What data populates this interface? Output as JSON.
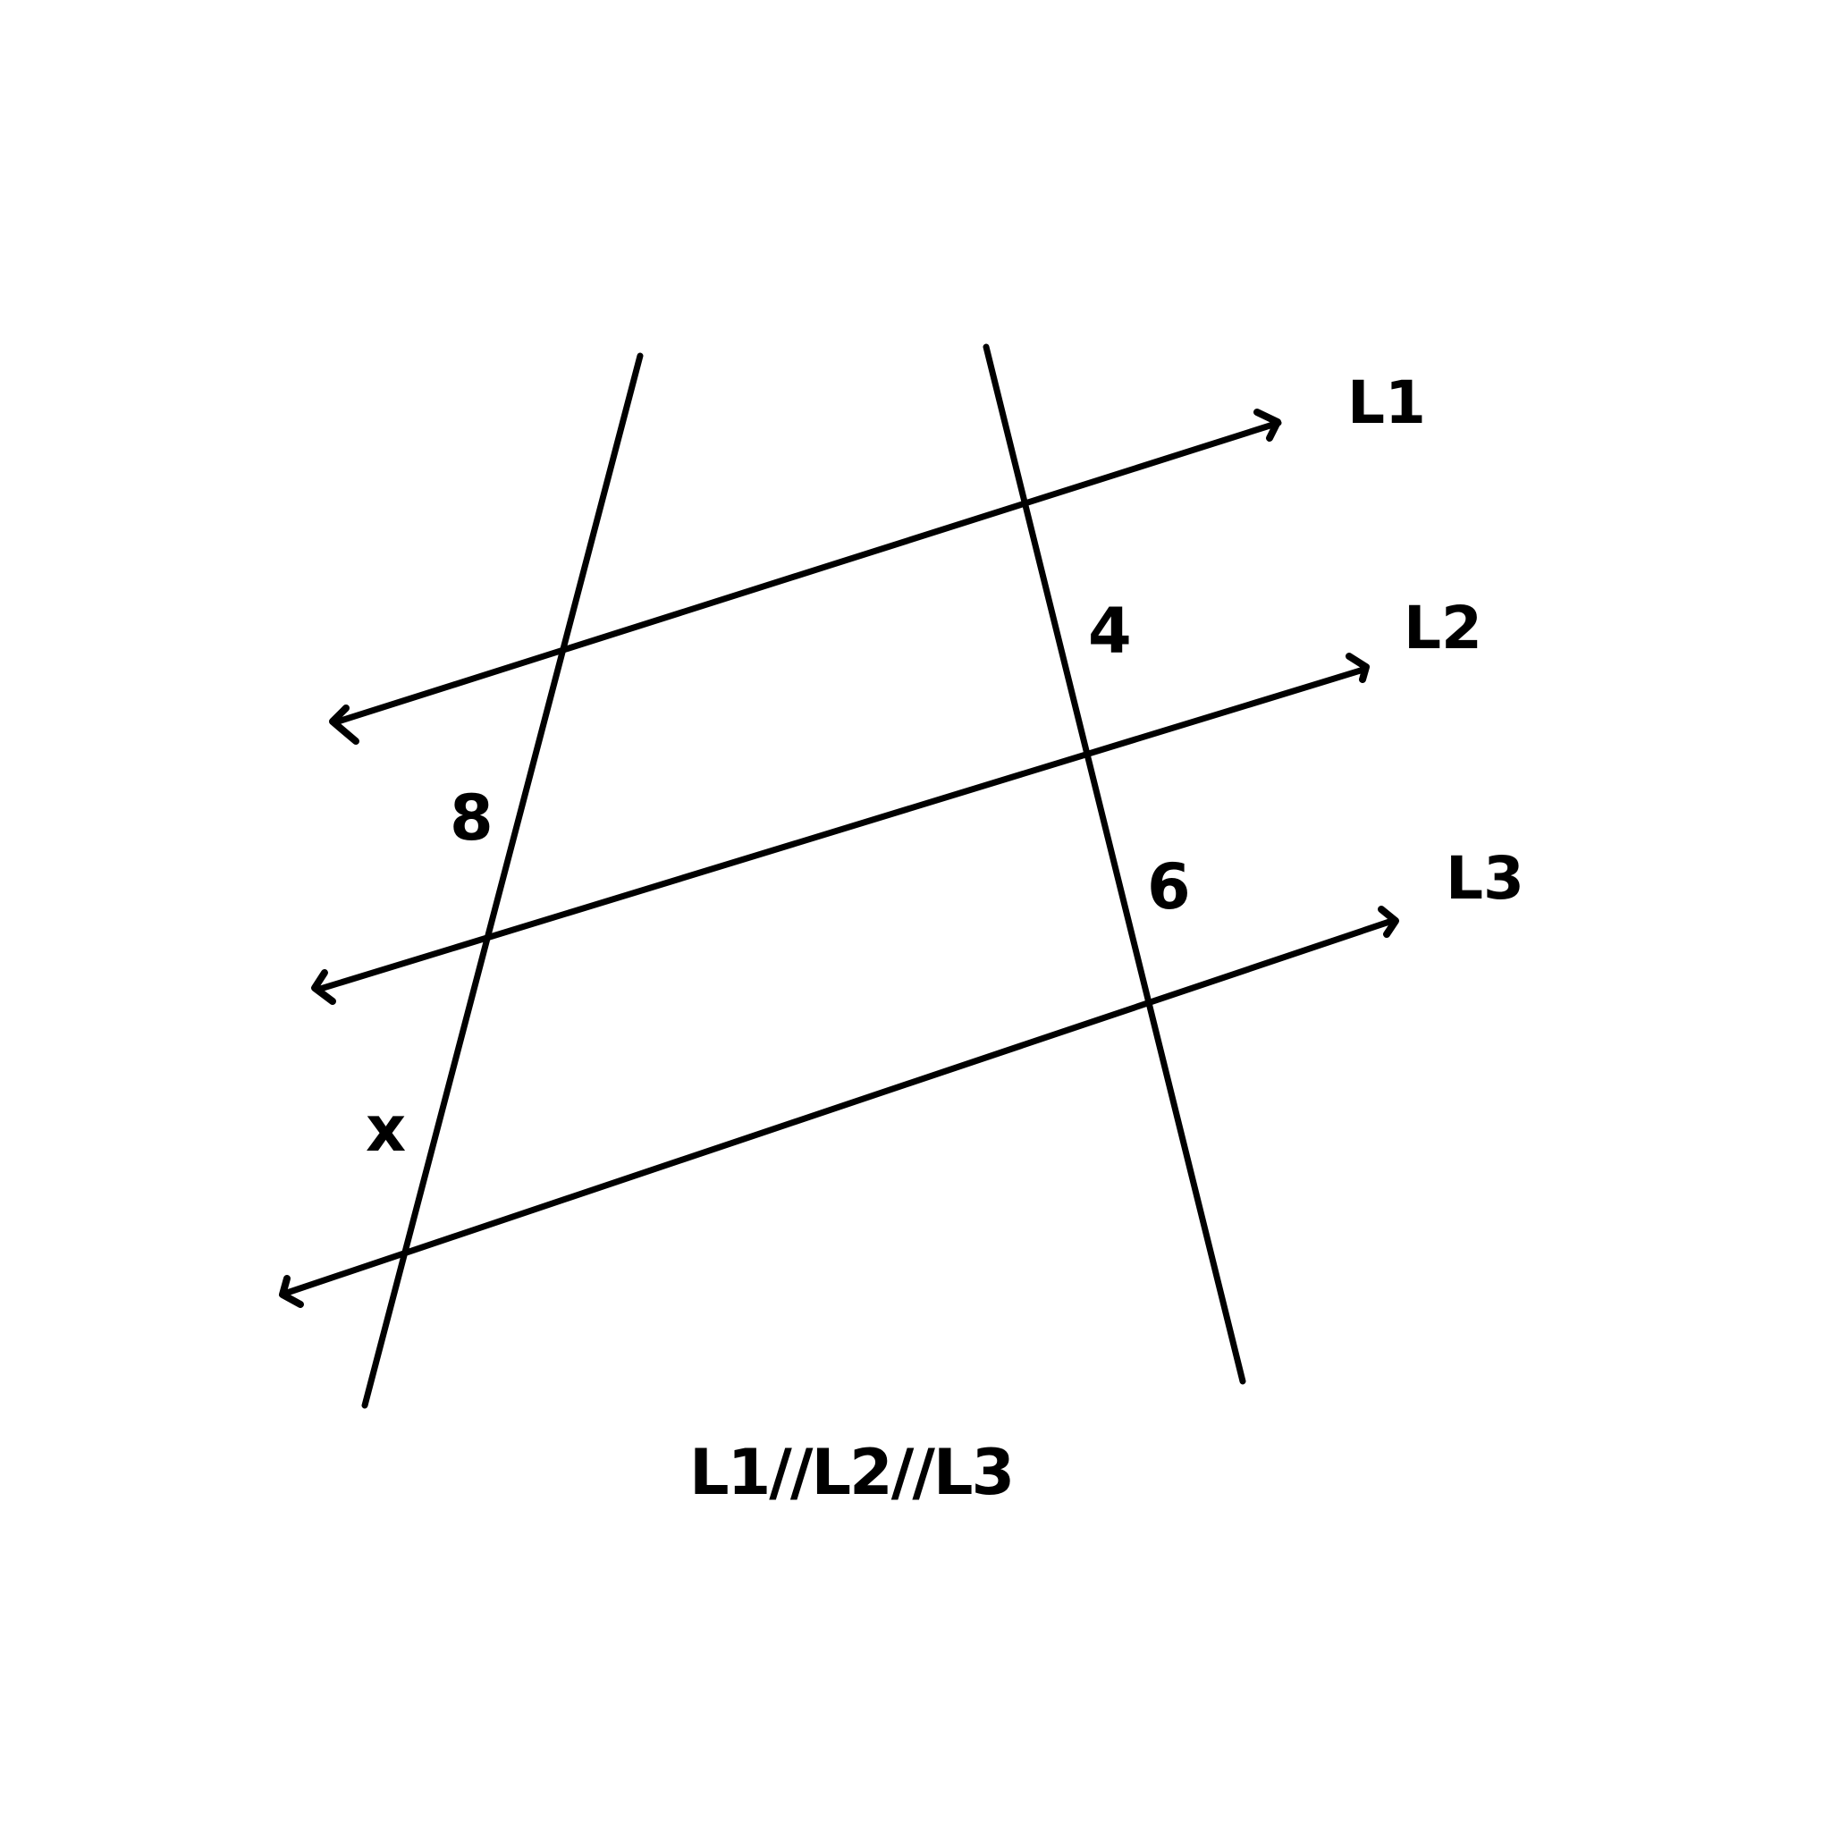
{
  "diagram": {
    "lines": {
      "l1": {
        "label": "L1"
      },
      "l2": {
        "label": "L2"
      },
      "l3": {
        "label": "L3"
      }
    },
    "segments": {
      "left_upper": "8",
      "left_lower": "x",
      "right_upper": "4",
      "right_lower": "6"
    },
    "caption": "L1//L2//L3",
    "stroke_color": "#000000",
    "background": "#ffffff"
  }
}
